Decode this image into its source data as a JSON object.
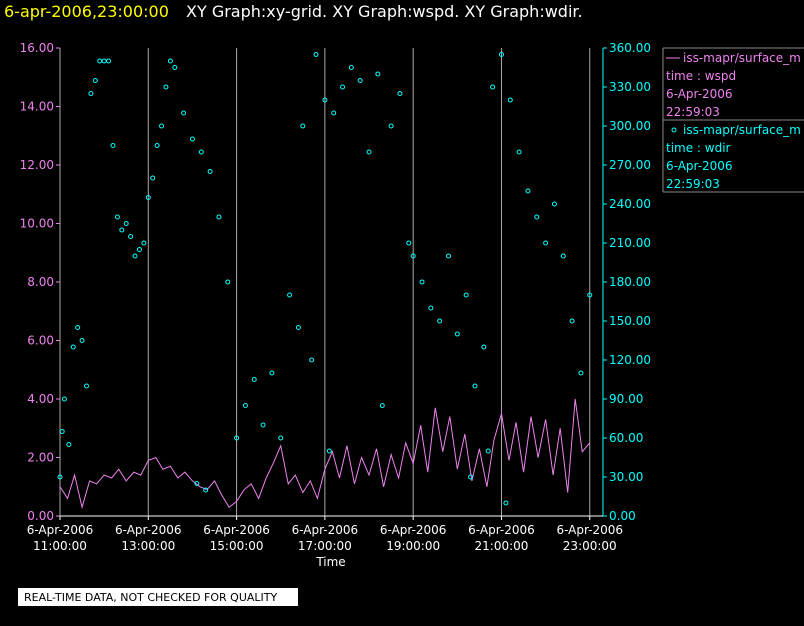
{
  "chart_data": {
    "type": "scatter-line",
    "title": "6-apr-2006,23:00:00",
    "subtitle": "XY Graph:xy-grid.  XY Graph:wspd.  XY Graph:wdir.",
    "x_label": "Time",
    "footer": "REAL-TIME DATA, NOT CHECKED FOR QUALITY",
    "xlim": [
      11,
      23.3
    ],
    "xticks": [
      {
        "value": 11,
        "label": "11:00:00",
        "date": "6-Apr-2006"
      },
      {
        "value": 13,
        "label": "13:00:00",
        "date": "6-Apr-2006"
      },
      {
        "value": 15,
        "label": "15:00:00",
        "date": "6-Apr-2006"
      },
      {
        "value": 17,
        "label": "17:00:00",
        "date": "6-Apr-2006"
      },
      {
        "value": 19,
        "label": "19:00:00",
        "date": "6-Apr-2006"
      },
      {
        "value": 21,
        "label": "21:00:00",
        "date": "6-Apr-2006"
      },
      {
        "value": 23,
        "label": "23:00:00",
        "date": "6-Apr-2006"
      }
    ],
    "ylim": [
      0,
      16
    ],
    "yticks": [
      {
        "value": 0,
        "label": "0.00"
      },
      {
        "value": 2,
        "label": "2.00"
      },
      {
        "value": 4,
        "label": "4.00"
      },
      {
        "value": 6,
        "label": "6.00"
      },
      {
        "value": 8,
        "label": "8.00"
      },
      {
        "value": 10,
        "label": "10.00"
      },
      {
        "value": 12,
        "label": "12.00"
      },
      {
        "value": 14,
        "label": "14.00"
      },
      {
        "value": 16,
        "label": "16.00"
      }
    ],
    "y2lim": [
      0,
      360
    ],
    "y2ticks": [
      {
        "value": 0,
        "label": "0.00"
      },
      {
        "value": 30,
        "label": "30.00"
      },
      {
        "value": 60,
        "label": "60.00"
      },
      {
        "value": 90,
        "label": "90.00"
      },
      {
        "value": 120,
        "label": "120.00"
      },
      {
        "value": 150,
        "label": "150.00"
      },
      {
        "value": 180,
        "label": "180.00"
      },
      {
        "value": 210,
        "label": "210.00"
      },
      {
        "value": 240,
        "label": "240.00"
      },
      {
        "value": 270,
        "label": "270.00"
      },
      {
        "value": 300,
        "label": "300.00"
      },
      {
        "value": 330,
        "label": "330.00"
      },
      {
        "value": 360,
        "label": "360.00"
      }
    ],
    "grid": true,
    "series": [
      {
        "name": "iss-mapr/surface_m",
        "kind": "line",
        "color": "#ee82ee",
        "legend_lines": [
          "time : wspd",
          "6-Apr-2006",
          "22:59:03"
        ],
        "x": [
          11,
          11.17,
          11.33,
          11.5,
          11.67,
          11.83,
          12,
          12.17,
          12.33,
          12.5,
          12.67,
          12.83,
          13,
          13.17,
          13.33,
          13.5,
          13.67,
          13.83,
          14,
          14.17,
          14.33,
          14.5,
          14.67,
          14.83,
          15,
          15.17,
          15.33,
          15.5,
          15.67,
          15.83,
          16,
          16.17,
          16.33,
          16.5,
          16.67,
          16.83,
          17,
          17.17,
          17.33,
          17.5,
          17.67,
          17.83,
          18,
          18.17,
          18.33,
          18.5,
          18.67,
          18.83,
          19,
          19.17,
          19.33,
          19.5,
          19.67,
          19.83,
          20,
          20.17,
          20.33,
          20.5,
          20.67,
          20.83,
          21,
          21.17,
          21.33,
          21.5,
          21.67,
          21.83,
          22,
          22.17,
          22.33,
          22.5,
          22.67,
          22.83,
          23
        ],
        "values": [
          1.0,
          0.6,
          1.4,
          0.3,
          1.2,
          1.1,
          1.4,
          1.3,
          1.6,
          1.2,
          1.5,
          1.4,
          1.9,
          2.0,
          1.6,
          1.7,
          1.3,
          1.5,
          1.2,
          1.0,
          0.9,
          1.2,
          0.7,
          0.3,
          0.5,
          0.9,
          1.1,
          0.6,
          1.3,
          1.8,
          2.4,
          1.1,
          1.4,
          0.8,
          1.2,
          0.6,
          1.6,
          2.2,
          1.3,
          2.4,
          1.1,
          2.0,
          1.4,
          2.3,
          1.0,
          2.1,
          1.3,
          2.5,
          1.8,
          3.1,
          1.5,
          3.7,
          2.2,
          3.4,
          1.6,
          2.8,
          1.2,
          2.3,
          1.0,
          2.6,
          3.5,
          1.9,
          3.2,
          1.5,
          3.4,
          2.0,
          3.3,
          1.4,
          3.0,
          0.8,
          4.0,
          2.2,
          2.5
        ]
      },
      {
        "name": "iss-mapr/surface_m",
        "kind": "scatter",
        "axis": "y2",
        "color": "#00ffff",
        "legend_lines": [
          "time : wdir",
          "6-Apr-2006",
          "22:59:03"
        ],
        "x": [
          11.0,
          11.05,
          11.1,
          11.2,
          11.3,
          11.4,
          11.5,
          11.6,
          11.7,
          11.8,
          11.9,
          12.0,
          12.1,
          12.2,
          12.3,
          12.4,
          12.5,
          12.6,
          12.7,
          12.8,
          12.9,
          13.0,
          13.1,
          13.2,
          13.3,
          13.4,
          13.5,
          13.6,
          13.8,
          14.0,
          14.2,
          14.4,
          14.6,
          14.8,
          14.3,
          14.1,
          15.0,
          15.2,
          15.4,
          15.6,
          15.8,
          16.0,
          16.2,
          16.4,
          16.5,
          16.7,
          16.8,
          17.0,
          17.2,
          17.4,
          17.6,
          17.8,
          18.0,
          18.2,
          18.3,
          18.5,
          18.7,
          18.9,
          19.0,
          19.2,
          19.4,
          19.6,
          19.8,
          20.0,
          20.2,
          20.4,
          20.6,
          20.8,
          21.0,
          21.2,
          21.4,
          21.6,
          21.8,
          22.0,
          22.2,
          22.4,
          22.6,
          22.8,
          23.0,
          20.3,
          20.7,
          17.1,
          21.1
        ],
        "values": [
          30,
          65,
          90,
          55,
          130,
          145,
          135,
          100,
          325,
          335,
          350,
          350,
          350,
          285,
          230,
          220,
          225,
          215,
          200,
          205,
          210,
          245,
          260,
          285,
          300,
          330,
          350,
          345,
          310,
          290,
          280,
          265,
          230,
          180,
          20,
          25,
          60,
          85,
          105,
          70,
          110,
          60,
          170,
          145,
          300,
          120,
          355,
          320,
          310,
          330,
          345,
          335,
          280,
          340,
          85,
          300,
          325,
          210,
          200,
          180,
          160,
          150,
          200,
          140,
          170,
          100,
          130,
          330,
          355,
          320,
          280,
          250,
          230,
          210,
          240,
          200,
          150,
          110,
          170,
          30,
          50,
          50,
          10
        ]
      }
    ]
  }
}
